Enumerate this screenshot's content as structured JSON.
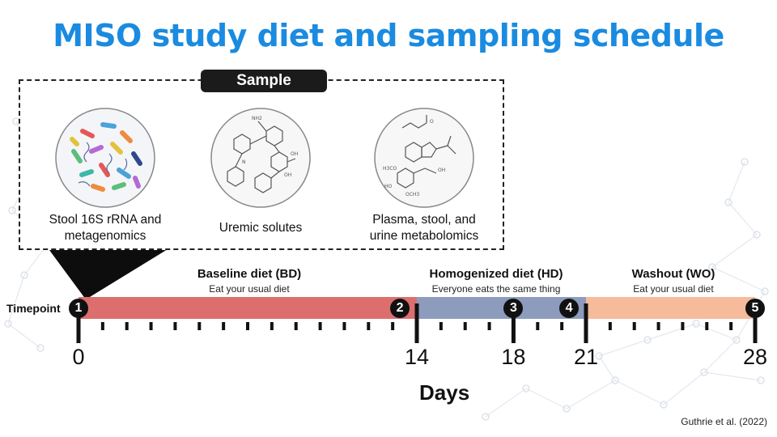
{
  "title": "MISO study diet and sampling schedule",
  "sample": {
    "header": "Sample",
    "items": [
      {
        "label_line1": "Stool 16S rRNA and",
        "label_line2": "metagenomics",
        "icon": "microbiome-icon"
      },
      {
        "label_line1": "Uremic solutes",
        "label_line2": "",
        "icon": "molecule-icon"
      },
      {
        "label_line1": "Plasma, stool, and",
        "label_line2": "urine metabolomics",
        "icon": "metabolite-icon"
      }
    ]
  },
  "phases": [
    {
      "title": "Baseline diet (BD)",
      "subtitle": "Eat your usual diet",
      "start_day": 0,
      "end_day": 14,
      "color": "#dd6e6e"
    },
    {
      "title": "Homogenized diet (HD)",
      "subtitle": "Everyone eats the same thing",
      "start_day": 14,
      "end_day": 21,
      "color": "#8d9bbd"
    },
    {
      "title": "Washout (WO)",
      "subtitle": "Eat your usual diet",
      "start_day": 21,
      "end_day": 28,
      "color": "#f5bb9a"
    }
  ],
  "timepoint_label": "Timepoint",
  "timepoints": [
    {
      "n": "1",
      "day": 0
    },
    {
      "n": "2",
      "day": 13.3
    },
    {
      "n": "3",
      "day": 18
    },
    {
      "n": "4",
      "day": 20.3
    },
    {
      "n": "5",
      "day": 28
    }
  ],
  "major_days": [
    "0",
    "14",
    "18",
    "21",
    "28"
  ],
  "axis_label": "Days",
  "citation": "Guthrie et al. (2022)"
}
